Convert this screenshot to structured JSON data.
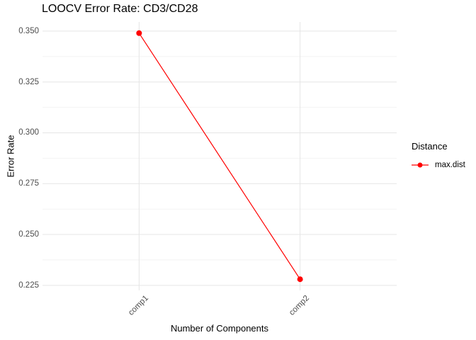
{
  "title": "LOOCV Error Rate: CD3/CD28",
  "chart_data": {
    "type": "line",
    "title": "LOOCV Error Rate: CD3/CD28",
    "categories": [
      "comp1",
      "comp2"
    ],
    "series": [
      {
        "name": "max.dist",
        "color": "#ff0000",
        "values": [
          0.349,
          0.228
        ]
      }
    ],
    "xlabel": "Number of Components",
    "ylabel": "Error Rate",
    "ylim": [
      0.2225,
      0.3545
    ],
    "yticks": [
      0.35,
      0.325,
      0.3,
      0.275,
      0.25,
      0.225
    ],
    "ytick_labels": [
      "0.350",
      "0.325",
      "0.300",
      "0.275",
      "0.250",
      "0.225"
    ],
    "yticks_minor": [
      0.3375,
      0.3125,
      0.2875,
      0.2625,
      0.2375
    ],
    "grid": true,
    "legend_position": "right",
    "legend_title": "Distance"
  },
  "legend": {
    "title": "Distance",
    "items": [
      {
        "label": "max.dist",
        "color": "#ff0000",
        "marker": "point-with-line"
      }
    ]
  },
  "colors": {
    "background": "#ffffff",
    "grid_major": "#e5e5e5",
    "grid_minor": "#f2f2f2",
    "axis_text": "#4d4d4d",
    "title_text": "#000000",
    "series_red": "#ff0000"
  }
}
